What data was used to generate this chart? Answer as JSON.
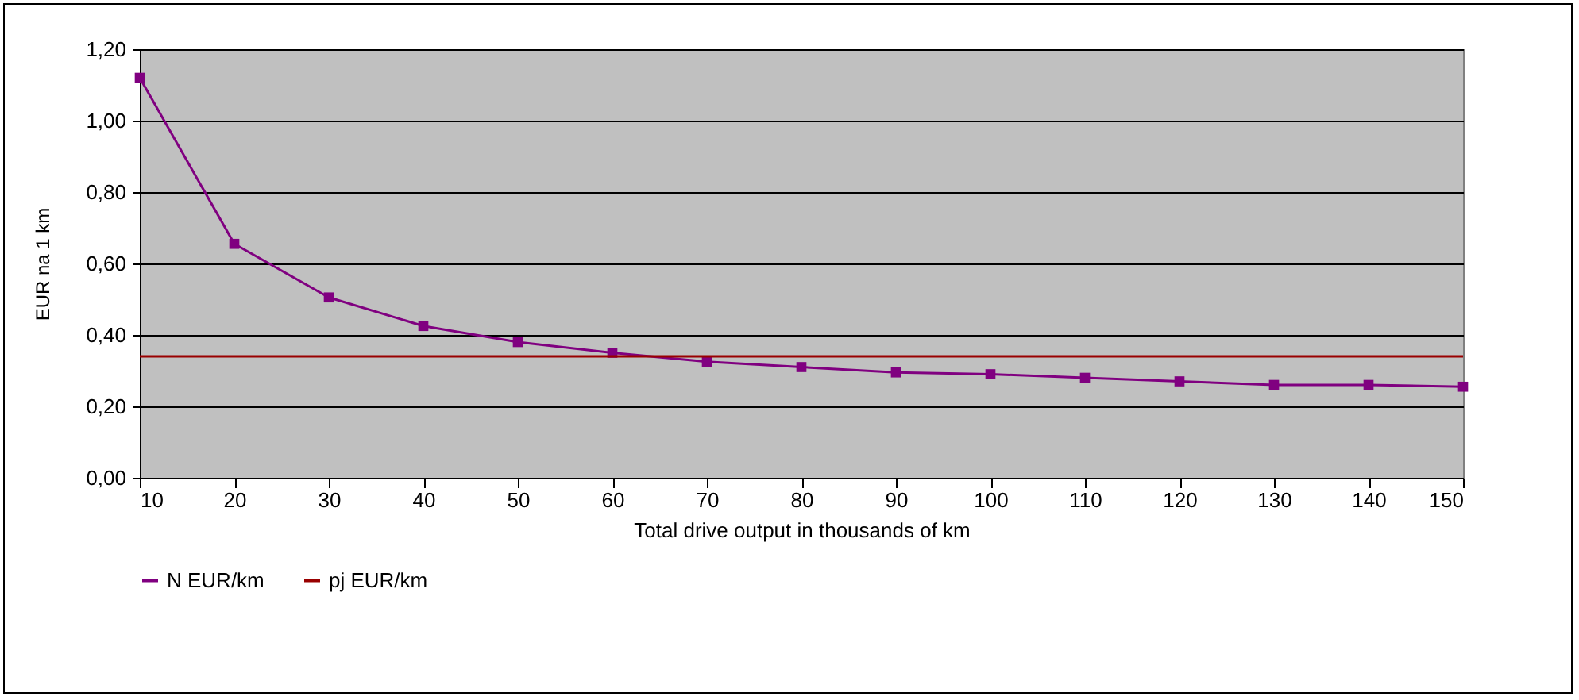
{
  "chart_data": {
    "type": "line",
    "xlabel": "Total drive output in thousands of km",
    "ylabel": "EUR na 1 km",
    "x": [
      10,
      20,
      30,
      40,
      50,
      60,
      70,
      80,
      90,
      100,
      110,
      120,
      130,
      140,
      150
    ],
    "series": [
      {
        "name": "N EUR/km",
        "color": "#800080",
        "marker": "square",
        "values": [
          1.12,
          0.655,
          0.505,
          0.425,
          0.38,
          0.35,
          0.325,
          0.31,
          0.295,
          0.29,
          0.28,
          0.27,
          0.26,
          0.26,
          0.255
        ]
      },
      {
        "name": "pj EUR/km",
        "color": "#990000",
        "marker": "none",
        "values": [
          0.34,
          0.34,
          0.34,
          0.34,
          0.34,
          0.34,
          0.34,
          0.34,
          0.34,
          0.34,
          0.34,
          0.34,
          0.34,
          0.34,
          0.34
        ]
      }
    ],
    "xlim": [
      10,
      150
    ],
    "xticks": [
      10,
      20,
      30,
      40,
      50,
      60,
      70,
      80,
      90,
      100,
      110,
      120,
      130,
      140,
      150
    ],
    "ylim": [
      0,
      1.2
    ],
    "yticks": [
      {
        "value": 0,
        "label": "0,00"
      },
      {
        "value": 0.2,
        "label": "0,20"
      },
      {
        "value": 0.4,
        "label": "0,40"
      },
      {
        "value": 0.6,
        "label": "0,60"
      },
      {
        "value": 0.8,
        "label": "0,80"
      },
      {
        "value": 1.0,
        "label": "1,00"
      },
      {
        "value": 1.2,
        "label": "1,20"
      }
    ],
    "grid": "y",
    "legend": "bottom",
    "line_style": "solid"
  }
}
